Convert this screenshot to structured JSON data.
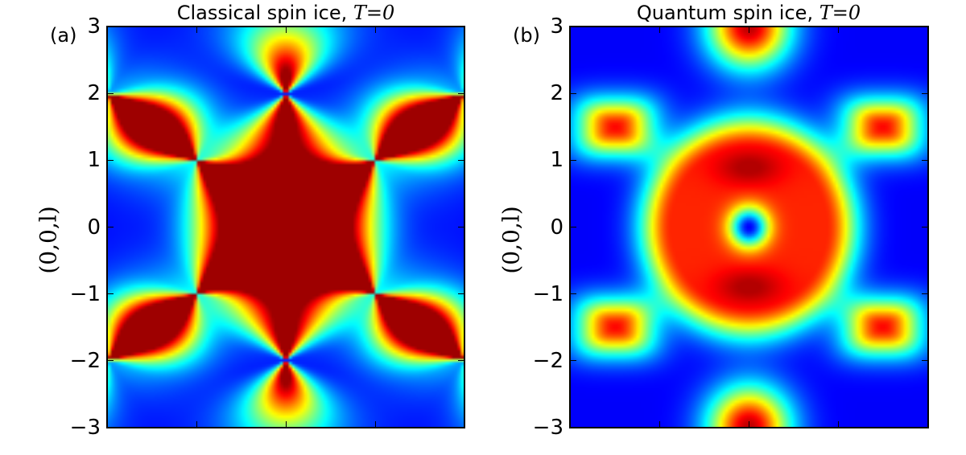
{
  "chart_data": [
    {
      "type": "heatmap",
      "panel": "(a)",
      "title": "Classical spin ice, ",
      "title_math": "T=0",
      "ylabel": "(0,0,l)",
      "ylim": [
        -3,
        3
      ],
      "yticks": [
        "3",
        "2",
        "1",
        "0",
        "−1",
        "−2",
        "−3"
      ],
      "xticks_count": 5,
      "colormap": "jet",
      "pinch_points": [
        {
          "u": 0,
          "l": 2,
          "axis": [
            0,
            1
          ]
        },
        {
          "u": 0,
          "l": -2,
          "axis": [
            0,
            1
          ]
        },
        {
          "u": 1,
          "l": 1,
          "axis": [
            1,
            1
          ]
        },
        {
          "u": -1,
          "l": -1,
          "axis": [
            1,
            1
          ]
        },
        {
          "u": -1,
          "l": 1,
          "axis": [
            -1,
            1
          ]
        },
        {
          "u": 1,
          "l": -1,
          "axis": [
            -1,
            1
          ]
        },
        {
          "u": 2,
          "l": 2,
          "axis": [
            1,
            1
          ]
        },
        {
          "u": -2,
          "l": -2,
          "axis": [
            1,
            1
          ]
        },
        {
          "u": -2,
          "l": 2,
          "axis": [
            -1,
            1
          ]
        },
        {
          "u": 2,
          "l": -2,
          "axis": [
            -1,
            1
          ]
        }
      ]
    },
    {
      "type": "heatmap",
      "panel": "(b)",
      "title": "Quantum spin ice, ",
      "title_math": "T=0",
      "ylabel": "(0,0,l)",
      "ylim": [
        -3,
        3
      ],
      "yticks": [
        "3",
        "2",
        "1",
        "0",
        "−1",
        "−2",
        "−3"
      ],
      "xticks_count": 5,
      "colormap": "jet",
      "maxima": [
        {
          "u": -1.5,
          "l": 1.5
        },
        {
          "u": 1.5,
          "l": 1.5
        },
        {
          "u": -1.5,
          "l": -1.5
        },
        {
          "u": 1.5,
          "l": -1.5
        },
        {
          "u": 0,
          "l": 3
        },
        {
          "u": 0,
          "l": -3
        },
        {
          "u": 0,
          "l": 0.9
        },
        {
          "u": 0,
          "l": -0.9
        }
      ],
      "minimum_center": {
        "u": 0,
        "l": 0
      }
    }
  ]
}
